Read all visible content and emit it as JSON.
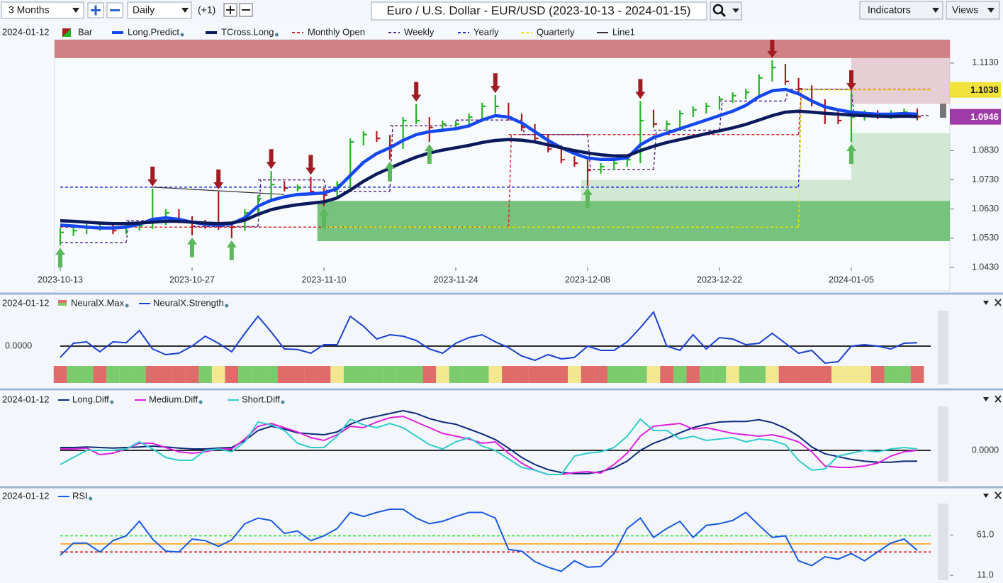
{
  "toolbar": {
    "period": "3 Months",
    "interval": "Daily",
    "offset": "(+1)",
    "title": "Euro / U.S. Dollar - EUR/USD (2023-10-13 - 2024-01-15)",
    "indicators": "Indicators",
    "views": "Views"
  },
  "date": "2024-01-12",
  "price_panel": {
    "categories": [
      "2023-10-13",
      null,
      null,
      null,
      null,
      null,
      null,
      null,
      null,
      null,
      "2023-10-27",
      null,
      null,
      null,
      null,
      null,
      null,
      null,
      null,
      null,
      "2023-11-10",
      null,
      null,
      null,
      null,
      null,
      null,
      null,
      null,
      null,
      "2023-11-24",
      null,
      null,
      null,
      null,
      null,
      null,
      null,
      null,
      null,
      "2023-12-08",
      null,
      null,
      null,
      null,
      null,
      null,
      null,
      null,
      null,
      "2023-12-22",
      null,
      null,
      null,
      null,
      null,
      null,
      null,
      null,
      null,
      "2024-01-05",
      null,
      null,
      null,
      null,
      null
    ],
    "ylim": [
      1.035,
      1.121
    ],
    "yticks": [
      {
        "value": 1.113,
        "label": "1.1130"
      },
      {
        "value": 1.083,
        "label": "1.0830"
      },
      {
        "value": 1.073,
        "label": "1.0730"
      },
      {
        "value": 1.063,
        "label": "1.0630"
      },
      {
        "value": 1.053,
        "label": "1.0530"
      },
      {
        "value": 1.043,
        "label": "1.0430"
      }
    ],
    "markers": [
      {
        "value": 1.1038,
        "label": "1.1038",
        "color": "#f2e33c",
        "text_color": "#1a1a1a"
      },
      {
        "value": 1.0946,
        "label": "1.0946",
        "color": "#a03aa8",
        "text_color": "#ffffff"
      }
    ],
    "overlays": [
      {
        "name": "Bar",
        "kind": "bar",
        "up_color": "#22b422",
        "down_color": "#b0191e",
        "high": [
          1.0565,
          1.0568,
          1.058,
          1.058,
          1.058,
          1.058,
          1.0585,
          1.07,
          1.0629,
          1.0629,
          1.0605,
          1.0593,
          1.069,
          1.0582,
          1.0629,
          1.0678,
          1.076,
          1.0726,
          1.0714,
          1.074,
          1.0702,
          1.0726,
          1.0872,
          1.0897,
          1.0897,
          1.0884,
          1.0945,
          1.099,
          1.0945,
          1.0933,
          1.0933,
          1.0957,
          1.0994,
          1.102,
          1.0994,
          1.0957,
          1.0921,
          1.0884,
          1.0848,
          1.0811,
          1.0799,
          1.0787,
          1.0799,
          1.0811,
          1.1,
          1.097,
          1.0933,
          1.0969,
          1.0982,
          1.0994,
          1.1018,
          1.103,
          1.1042,
          1.1091,
          1.114,
          1.1127,
          1.1079,
          1.1054,
          1.1006,
          1.0969,
          1.103,
          1.0969,
          1.0969,
          1.0969,
          1.0974,
          1.0974
        ],
        "low": [
          1.0505,
          1.0538,
          1.0544,
          1.0556,
          1.0544,
          1.0544,
          1.0556,
          1.0561,
          1.0576,
          1.0581,
          1.054,
          1.0563,
          1.0558,
          1.053,
          1.0556,
          1.0605,
          1.0654,
          1.069,
          1.069,
          1.0678,
          1.064,
          1.0666,
          1.0702,
          1.0848,
          1.086,
          1.08,
          1.0836,
          1.0921,
          1.086,
          1.0897,
          1.0909,
          1.0909,
          1.0933,
          1.0957,
          1.0933,
          1.0897,
          1.086,
          1.0824,
          1.0787,
          1.0775,
          1.071,
          1.0751,
          1.0763,
          1.0775,
          1.0787,
          1.0909,
          1.0897,
          1.0909,
          1.0945,
          1.0957,
          1.097,
          1.0994,
          1.1006,
          1.1018,
          1.1067,
          1.1055,
          1.103,
          1.0982,
          1.0921,
          1.0921,
          1.086,
          1.0933,
          1.0938,
          1.0938,
          1.0945,
          1.0934
        ],
        "close": [
          1.055,
          1.0556,
          1.0568,
          1.0568,
          1.0556,
          1.0568,
          1.0573,
          1.0588,
          1.0617,
          1.0593,
          1.0581,
          1.0575,
          1.057,
          1.0568,
          1.0617,
          1.0666,
          1.0714,
          1.0702,
          1.0702,
          1.069,
          1.0678,
          1.0714,
          1.086,
          1.0885,
          1.0872,
          1.0848,
          1.0933,
          1.0933,
          1.0909,
          1.0921,
          1.0921,
          1.0945,
          1.0982,
          1.0982,
          1.0945,
          1.0909,
          1.0872,
          1.0836,
          1.0799,
          1.0787,
          1.0763,
          1.0775,
          1.0787,
          1.0799,
          1.0933,
          1.0921,
          1.0921,
          1.0957,
          1.097,
          1.0982,
          1.1006,
          1.1018,
          1.103,
          1.1079,
          1.1115,
          1.1067,
          1.1042,
          1.0994,
          1.0957,
          1.0933,
          1.0945,
          1.0957,
          1.095,
          1.0957,
          1.0962,
          1.0946
        ]
      },
      {
        "name": "Long.Predict",
        "kind": "line",
        "color": "#1447f0",
        "values": [
          1.0575,
          1.0572,
          1.0568,
          1.0565,
          1.0565,
          1.0568,
          1.0578,
          1.0595,
          1.06,
          1.0595,
          1.0585,
          1.0578,
          1.0575,
          1.058,
          1.06,
          1.064,
          1.066,
          1.0672,
          1.068,
          1.0682,
          1.0685,
          1.07,
          1.0745,
          1.079,
          1.082,
          1.084,
          1.0865,
          1.0885,
          1.0895,
          1.09,
          1.0905,
          1.0915,
          1.0935,
          1.095,
          1.0945,
          1.0925,
          1.0895,
          1.0865,
          1.084,
          1.082,
          1.0805,
          1.08,
          1.08,
          1.0805,
          1.085,
          1.0875,
          1.089,
          1.0905,
          1.092,
          1.0935,
          1.095,
          1.0965,
          1.0985,
          1.1015,
          1.1035,
          1.104,
          1.1025,
          1.1,
          1.098,
          1.097,
          1.0962,
          1.0958,
          1.0955,
          1.0955,
          1.0957,
          1.0955
        ]
      },
      {
        "name": "TCross.Long",
        "kind": "line",
        "color": "#0a1a5c",
        "values": [
          1.059,
          1.0588,
          1.0585,
          1.0582,
          1.058,
          1.058,
          1.0582,
          1.0585,
          1.0588,
          1.0588,
          1.0585,
          1.0582,
          1.058,
          1.0582,
          1.0592,
          1.0612,
          1.0628,
          1.0638,
          1.0645,
          1.065,
          1.0655,
          1.0668,
          1.0695,
          1.0725,
          1.075,
          1.077,
          1.079,
          1.0808,
          1.0822,
          1.0832,
          1.084,
          1.0848,
          1.0858,
          1.0865,
          1.0868,
          1.0866,
          1.086,
          1.085,
          1.084,
          1.083,
          1.0822,
          1.0816,
          1.0812,
          1.0812,
          1.083,
          1.0845,
          1.0858,
          1.0868,
          1.0878,
          1.0888,
          1.0898,
          1.0908,
          1.092,
          1.0935,
          1.095,
          1.0962,
          1.0965,
          1.0962,
          1.0958,
          1.0955,
          1.0952,
          1.095,
          1.0948,
          1.0947,
          1.0948,
          1.0947
        ]
      },
      {
        "name": "Monthly Open",
        "kind": "level",
        "color": "#d62728",
        "segments": [
          [
            0,
            34,
            1.0568
          ],
          [
            34,
            56,
            1.0885
          ],
          [
            56,
            66,
            1.104
          ]
        ]
      },
      {
        "name": "Weekly",
        "kind": "level",
        "color": "#5a2a82",
        "segments": [
          [
            0,
            5,
            1.0515
          ],
          [
            5,
            10,
            1.059
          ],
          [
            10,
            15,
            1.057
          ],
          [
            15,
            20,
            1.073
          ],
          [
            20,
            25,
            1.069
          ],
          [
            25,
            30,
            1.0915
          ],
          [
            30,
            35,
            1.0935
          ],
          [
            35,
            40,
            1.0885
          ],
          [
            40,
            45,
            1.0765
          ],
          [
            45,
            50,
            1.09
          ],
          [
            50,
            55,
            1.1
          ],
          [
            55,
            60,
            1.104
          ],
          [
            60,
            66,
            1.095
          ]
        ]
      },
      {
        "name": "Yearly",
        "kind": "level",
        "color": "#1a2fd6",
        "segments": [
          [
            0,
            56,
            1.0705
          ],
          [
            56,
            66,
            1.1038
          ]
        ]
      },
      {
        "name": "Quarterly",
        "kind": "level",
        "color": "#e6e600",
        "segments": [
          [
            20,
            56,
            1.0568
          ],
          [
            56,
            66,
            1.1038
          ]
        ]
      },
      {
        "name": "Line1",
        "kind": "segment",
        "color": "#333333",
        "points": [
          [
            7,
            1.0705
          ],
          [
            17,
            1.068
          ]
        ]
      }
    ],
    "zones": [
      {
        "from": -0.5,
        "to": 68,
        "low": 1.1147,
        "high": 1.121,
        "color": "rgba(196,88,92,0.75)"
      },
      {
        "from": 60.5,
        "to": 68,
        "low": 1.099,
        "high": 1.1147,
        "color": "rgba(214,160,170,0.5)"
      },
      {
        "from": 60.5,
        "to": 68,
        "low": 1.073,
        "high": 1.089,
        "color": "rgba(150,205,150,0.4)"
      },
      {
        "from": 40,
        "to": 68,
        "low": 1.0658,
        "high": 1.073,
        "color": "rgba(150,205,150,0.4)"
      },
      {
        "from": 20,
        "to": 68,
        "low": 1.052,
        "high": 1.0658,
        "color": "rgba(76,175,80,0.75)"
      }
    ],
    "buy_signals": [
      0,
      10,
      13,
      20,
      25,
      28,
      40,
      60
    ],
    "sell_signals": [
      7,
      12,
      16,
      19,
      27,
      33,
      44,
      54,
      60
    ],
    "buy_color": "#5cb85c",
    "sell_color": "#a01c22"
  },
  "neural_panel": {
    "max_name": "NeuralX.Max",
    "strength_name": "NeuralX.Strength",
    "strength_color": "#1a3fd0",
    "ylim": [
      -0.6,
      1.2
    ],
    "yticks": [
      {
        "value": 0,
        "label": "0.0000"
      }
    ],
    "strength": [
      -0.4,
      0.1,
      0.15,
      -0.2,
      0.15,
      0.12,
      0.55,
      -0.1,
      -0.3,
      -0.25,
      0.0,
      0.35,
      0.1,
      -0.2,
      0.45,
      1.05,
      0.5,
      -0.1,
      -0.12,
      -0.25,
      0.05,
      0.05,
      1.05,
      0.7,
      0.25,
      0.4,
      0.35,
      0.2,
      -0.1,
      -0.25,
      0.1,
      0.3,
      0.4,
      0.15,
      -0.05,
      -0.35,
      -0.5,
      -0.3,
      -0.45,
      -0.4,
      0.0,
      -0.15,
      -0.15,
      0.15,
      0.65,
      1.2,
      0.0,
      -0.15,
      0.4,
      -0.1,
      0.3,
      0.25,
      0.05,
      0.1,
      0.45,
      0.1,
      -0.25,
      -0.15,
      -0.6,
      -0.55,
      0.0,
      0.05,
      0.0,
      -0.1,
      0.1,
      0.12
    ],
    "palette": {
      "red": "#e06b6b",
      "green": "#7ccc6e",
      "yellow": "#f3e88f"
    },
    "max_states": [
      "red",
      "green",
      "green",
      "red",
      "green",
      "green",
      "green",
      "red",
      "red",
      "red",
      "red",
      "green",
      "yellow",
      "red",
      "green",
      "green",
      "green",
      "red",
      "red",
      "red",
      "red",
      "yellow",
      "green",
      "green",
      "green",
      "green",
      "green",
      "green",
      "red",
      "yellow",
      "green",
      "green",
      "green",
      "yellow",
      "red",
      "red",
      "red",
      "red",
      "red",
      "yellow",
      "red",
      "red",
      "green",
      "green",
      "green",
      "yellow",
      "red",
      "green",
      "red",
      "green",
      "green",
      "yellow",
      "green",
      "green",
      "yellow",
      "red",
      "red",
      "red",
      "red",
      "yellow",
      "yellow",
      "yellow",
      "red",
      "green",
      "green",
      "red"
    ]
  },
  "diff_panel": {
    "ylim": [
      -1,
      1.5
    ],
    "yticks": [
      {
        "value": 0,
        "label": "0.0000"
      }
    ],
    "series": [
      {
        "name": "Long.Diff",
        "color": "#0d2a7a",
        "values": [
          0.1,
          0.1,
          0.12,
          0.1,
          0.08,
          0.1,
          0.12,
          0.15,
          0.12,
          0.08,
          0.05,
          0.05,
          0.08,
          0.1,
          0.35,
          0.7,
          0.85,
          0.75,
          0.62,
          0.58,
          0.55,
          0.65,
          0.92,
          1.1,
          1.2,
          1.3,
          1.4,
          1.3,
          1.12,
          1.0,
          0.92,
          0.75,
          0.58,
          0.38,
          0.08,
          -0.25,
          -0.5,
          -0.68,
          -0.78,
          -0.82,
          -0.82,
          -0.75,
          -0.62,
          -0.38,
          0.0,
          0.25,
          0.42,
          0.62,
          0.8,
          0.92,
          1.0,
          1.02,
          1.02,
          1.08,
          0.98,
          0.78,
          0.5,
          0.12,
          -0.12,
          -0.22,
          -0.32,
          -0.38,
          -0.42,
          -0.42,
          -0.38,
          -0.38
        ]
      },
      {
        "name": "Medium.Diff",
        "color": "#e020e0",
        "values": [
          0.05,
          0.05,
          0.08,
          -0.15,
          -0.1,
          0.05,
          0.25,
          0.25,
          0.1,
          -0.05,
          -0.1,
          -0.05,
          0.05,
          0.05,
          0.4,
          0.85,
          0.95,
          0.8,
          0.65,
          0.45,
          0.35,
          0.55,
          0.85,
          0.8,
          1.0,
          1.15,
          1.2,
          1.0,
          0.8,
          0.6,
          0.5,
          0.4,
          0.25,
          0.3,
          -0.1,
          -0.45,
          -0.7,
          -0.85,
          -0.85,
          -0.78,
          -0.75,
          -0.8,
          -0.5,
          -0.1,
          0.5,
          0.85,
          0.9,
          0.95,
          0.75,
          0.8,
          0.7,
          0.6,
          0.55,
          0.5,
          0.55,
          0.45,
          0.3,
          -0.05,
          -0.55,
          -0.6,
          -0.6,
          -0.55,
          -0.45,
          -0.2,
          -0.05,
          0.0
        ]
      },
      {
        "name": "Short.Diff",
        "color": "#30cccc",
        "values": [
          -0.5,
          -0.25,
          0.0,
          0.0,
          0.0,
          0.05,
          0.3,
          0.05,
          -0.25,
          -0.35,
          -0.35,
          0.0,
          0.05,
          -0.05,
          0.3,
          1.0,
          0.9,
          0.7,
          0.25,
          0.1,
          0.1,
          0.5,
          1.1,
          0.9,
          0.8,
          0.95,
          0.8,
          0.5,
          0.2,
          0.05,
          0.3,
          0.45,
          0.15,
          0.0,
          -0.3,
          -0.6,
          -0.7,
          -0.85,
          -0.85,
          -0.2,
          -0.1,
          -0.05,
          0.1,
          0.5,
          1.1,
          0.7,
          0.7,
          0.4,
          0.5,
          0.35,
          0.4,
          0.45,
          0.3,
          0.4,
          0.35,
          0.2,
          -0.35,
          -0.7,
          -0.65,
          -0.2,
          -0.1,
          0.0,
          -0.05,
          0.05,
          0.1,
          0.05
        ]
      }
    ]
  },
  "rsi_panel": {
    "ylim": [
      5,
      100
    ],
    "yticks": [
      {
        "value": 61,
        "label": "61.0"
      },
      {
        "value": 11,
        "label": "11.0"
      }
    ],
    "levels": [
      {
        "value": 60,
        "color": "#22dd22"
      },
      {
        "value": 50,
        "color": "#ff9900"
      },
      {
        "value": 40,
        "color": "#dd0000"
      }
    ],
    "series": [
      {
        "name": "RSI",
        "color": "#1a5ae0",
        "values": [
          36,
          51,
          51,
          40,
          54,
          60,
          78,
          56,
          41,
          40,
          56,
          54,
          47,
          55,
          75,
          82,
          79,
          63,
          66,
          54,
          60,
          69,
          89,
          84,
          89,
          93,
          93,
          82,
          75,
          78,
          84,
          89,
          89,
          82,
          43,
          41,
          28,
          21,
          16,
          29,
          21,
          22,
          38,
          69,
          82,
          58,
          69,
          78,
          58,
          73,
          75,
          79,
          89,
          73,
          58,
          60,
          29,
          23,
          34,
          31,
          38,
          29,
          40,
          51,
          56,
          42
        ]
      }
    ]
  }
}
